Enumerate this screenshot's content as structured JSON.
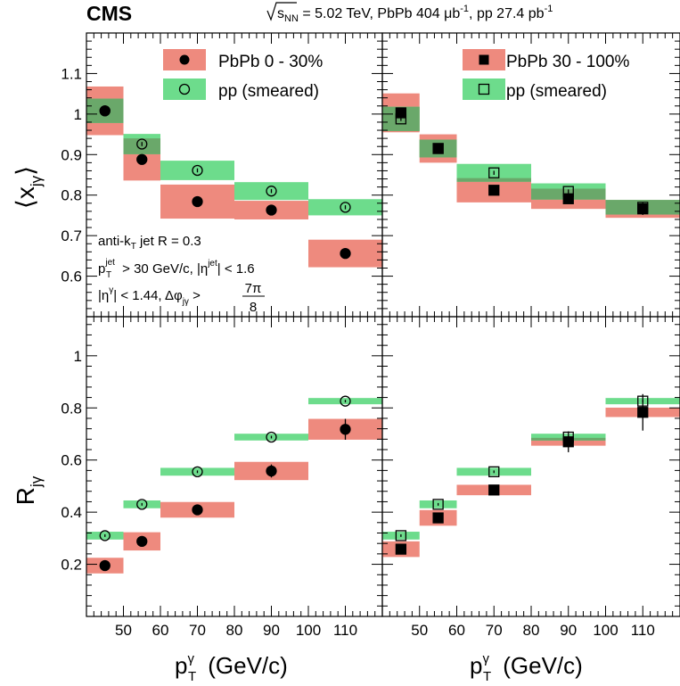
{
  "header": {
    "experiment": "CMS",
    "energy_sqrt_s": "√s",
    "energy_sub": "NN",
    "energy_rest": " = 5.02 TeV, PbPb 404 μb",
    "lumi_exp1": "-1",
    "lumi_mid": ", pp 27.4 pb",
    "lumi_exp2": "-1"
  },
  "cuts": {
    "line1_pre": "anti-k",
    "line1_sub": "T",
    "line1_post": " jet R = 0.3",
    "line2_p": "p",
    "line2_sup": "jet",
    "line2_sub": "T",
    "line2_mid": " > 30 GeV/c, |η",
    "line2_sup2": "jet",
    "line2_post": "| < 1.6",
    "line3_pre": "|η",
    "line3_sup": "γ",
    "line3_mid": "| < 1.44, Δφ",
    "line3_sub": "jγ",
    "line3_gt": " >",
    "frac_num": "7π",
    "frac_den": "8"
  },
  "colors": {
    "pbpb_box": "#ee8a7e",
    "pp_box": "#6ddc8c",
    "overlap_box": "#6aa86a",
    "marker": "#000000",
    "frame": "#000000"
  },
  "chart_data": {
    "type": "scatter",
    "x_axis": {
      "label_main": "p",
      "label_sup": "γ",
      "label_sub": "T",
      "label_unit": " (GeV/c)",
      "range": [
        40,
        120
      ],
      "major_ticks": [
        50,
        60,
        70,
        80,
        90,
        100,
        110
      ],
      "bins": [
        [
          40,
          50
        ],
        [
          50,
          60
        ],
        [
          60,
          80
        ],
        [
          80,
          100
        ],
        [
          100,
          120
        ]
      ]
    },
    "panels": [
      {
        "id": "xjg-central",
        "ylabel_main": "⟨x",
        "ylabel_sub": "jγ",
        "ylabel_close": "⟩",
        "ylim": [
          0.5,
          1.2
        ],
        "y_ticks": [
          0.6,
          0.7,
          0.8,
          0.9,
          1.0,
          1.1
        ],
        "y_tick_labels": [
          "0.6",
          "0.7",
          "0.8",
          "0.9",
          "1",
          "1.1"
        ],
        "legend": [
          "PbPb 0 - 30%",
          "pp (smeared)"
        ],
        "marker_shape": "circle",
        "series": [
          {
            "name": "PbPb 0 - 30%",
            "style": "pbpb",
            "x": [
              45,
              55,
              70,
              90,
              110
            ],
            "y": [
              1.008,
              0.888,
              0.784,
              0.763,
              0.656
            ],
            "stat": [
              0.01,
              0.01,
              0.01,
              0.01,
              0.01
            ],
            "syst": [
              0.06,
              0.052,
              0.042,
              0.023,
              0.034
            ]
          },
          {
            "name": "pp (smeared)",
            "style": "pp",
            "x": [
              45,
              55,
              70,
              90,
              110
            ],
            "y": [
              1.008,
              0.926,
              0.861,
              0.81,
              0.77
            ],
            "stat": [
              0.005,
              0.005,
              0.005,
              0.005,
              0.005
            ],
            "syst": [
              0.03,
              0.025,
              0.024,
              0.022,
              0.02
            ]
          }
        ]
      },
      {
        "id": "xjg-peripheral",
        "ylim": [
          0.5,
          1.2
        ],
        "y_ticks": [
          0.6,
          0.7,
          0.8,
          0.9,
          1.0,
          1.1
        ],
        "legend": [
          "PbPb 30 - 100%",
          "pp (smeared)"
        ],
        "marker_shape": "square",
        "series": [
          {
            "name": "PbPb 30 - 100%",
            "style": "pbpb",
            "x": [
              45,
              55,
              70,
              90,
              110
            ],
            "y": [
              1.003,
              0.915,
              0.812,
              0.791,
              0.766
            ],
            "stat": [
              0.01,
              0.01,
              0.012,
              0.012,
              0.015
            ],
            "syst": [
              0.048,
              0.035,
              0.03,
              0.025,
              0.022
            ]
          },
          {
            "name": "pp (smeared)",
            "style": "pp",
            "x": [
              45,
              55,
              70,
              90,
              110
            ],
            "y": [
              0.988,
              0.915,
              0.855,
              0.809,
              0.77
            ],
            "stat": [
              0.005,
              0.005,
              0.005,
              0.005,
              0.005
            ],
            "syst": [
              0.03,
              0.022,
              0.022,
              0.02,
              0.018
            ]
          }
        ]
      },
      {
        "id": "rjg-central",
        "ylabel_main": "R",
        "ylabel_sub": "jγ",
        "ylim": [
          0.0,
          1.15
        ],
        "y_ticks": [
          0.2,
          0.4,
          0.6,
          0.8,
          1.0
        ],
        "y_tick_labels": [
          "0.2",
          "0.4",
          "0.6",
          "0.8",
          "1"
        ],
        "marker_shape": "circle",
        "series": [
          {
            "name": "PbPb 0 - 30%",
            "style": "pbpb",
            "x": [
              45,
              55,
              70,
              90,
              110
            ],
            "y": [
              0.195,
              0.288,
              0.409,
              0.558,
              0.718
            ],
            "stat": [
              0.01,
              0.012,
              0.015,
              0.025,
              0.04
            ],
            "syst": [
              0.03,
              0.035,
              0.03,
              0.035,
              0.04
            ]
          },
          {
            "name": "pp (smeared)",
            "style": "pp",
            "x": [
              45,
              55,
              70,
              90,
              110
            ],
            "y": [
              0.31,
              0.43,
              0.555,
              0.688,
              0.826
            ],
            "stat": [
              0.005,
              0.005,
              0.005,
              0.005,
              0.005
            ],
            "syst": [
              0.015,
              0.015,
              0.015,
              0.013,
              0.012
            ]
          }
        ]
      },
      {
        "id": "rjg-peripheral",
        "ylim": [
          0.0,
          1.15
        ],
        "y_ticks": [
          0.2,
          0.4,
          0.6,
          0.8,
          1.0
        ],
        "marker_shape": "square",
        "series": [
          {
            "name": "PbPb 30 - 100%",
            "style": "pbpb",
            "x": [
              45,
              55,
              70,
              90,
              110
            ],
            "y": [
              0.258,
              0.378,
              0.485,
              0.67,
              0.783
            ],
            "stat": [
              0.01,
              0.015,
              0.015,
              0.04,
              0.07
            ],
            "syst": [
              0.03,
              0.03,
              0.02,
              0.015,
              0.018
            ]
          },
          {
            "name": "pp (smeared)",
            "style": "pp",
            "x": [
              45,
              55,
              70,
              90,
              110
            ],
            "y": [
              0.31,
              0.43,
              0.555,
              0.688,
              0.826
            ],
            "stat": [
              0.005,
              0.005,
              0.005,
              0.005,
              0.005
            ],
            "syst": [
              0.015,
              0.015,
              0.015,
              0.013,
              0.012
            ]
          }
        ]
      }
    ]
  }
}
